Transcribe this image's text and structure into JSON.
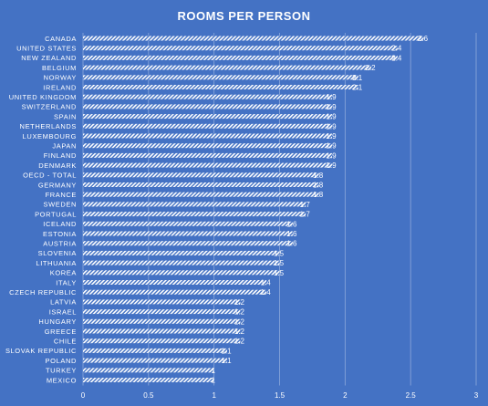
{
  "chart_data": {
    "type": "bar",
    "orientation": "horizontal",
    "title": "ROOMS PER PERSON",
    "categories": [
      "CANADA",
      "UNITED STATES",
      "NEW ZEALAND",
      "BELGIUM",
      "NORWAY",
      "IRELAND",
      "UNITED KINGDOM",
      "SWITZERLAND",
      "SPAIN",
      "NETHERLANDS",
      "LUXEMBOURG",
      "JAPAN",
      "FINLAND",
      "DENMARK",
      "OECD - TOTAL",
      "GERMANY",
      "FRANCE",
      "SWEDEN",
      "PORTUGAL",
      "ICELAND",
      "ESTONIA",
      "AUSTRIA",
      "SLOVENIA",
      "LITHUANIA",
      "KOREA",
      "ITALY",
      "CZECH REPUBLIC",
      "LATVIA",
      "ISRAEL",
      "HUNGARY",
      "GREECE",
      "CHILE",
      "SLOVAK REPUBLIC",
      "POLAND",
      "TURKEY",
      "MEXICO"
    ],
    "values": [
      2.6,
      2.4,
      2.4,
      2.2,
      2.1,
      2.1,
      1.9,
      1.9,
      1.9,
      1.9,
      1.9,
      1.9,
      1.9,
      1.9,
      1.8,
      1.8,
      1.8,
      1.7,
      1.7,
      1.6,
      1.6,
      1.6,
      1.5,
      1.5,
      1.5,
      1.4,
      1.4,
      1.2,
      1.2,
      1.2,
      1.2,
      1.2,
      1.1,
      1.1,
      1,
      1
    ],
    "value_labels": [
      "2.6",
      "2.4",
      "2.4",
      "2.2",
      "2.1",
      "2.1",
      "1.9",
      "1.9",
      "1.9",
      "1.9",
      "1.9",
      "1.9",
      "1.9",
      "1.9",
      "1.8",
      "1.8",
      "1.8",
      "1.7",
      "1.7",
      "1.6",
      "1.6",
      "1.6",
      "1.5",
      "1.5",
      "1.5",
      "1.4",
      "1.4",
      "1.2",
      "1.2",
      "1.2",
      "1.2",
      "1.2",
      "1.1",
      "1.1",
      "1",
      "1"
    ],
    "xlim": [
      0,
      3
    ],
    "x_ticks": [
      "0",
      "0.5",
      "1",
      "1.5",
      "2",
      "2.5",
      "3"
    ],
    "grid": true,
    "colors": {
      "background": "#4472C4",
      "bar": "#FFFFFF",
      "grid": "#8EA9DB",
      "text": "#FFFFFF"
    }
  }
}
